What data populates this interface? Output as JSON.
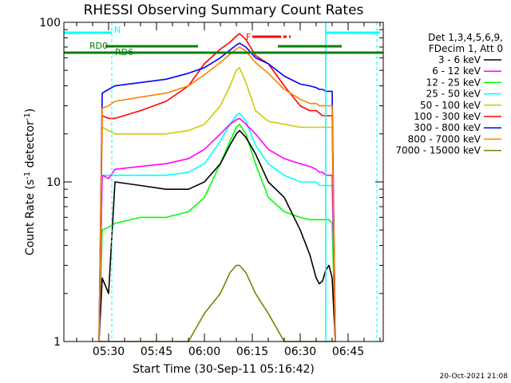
{
  "chart_data": {
    "type": "line",
    "title": "RHESSI Observing Summary Count Rates",
    "xlabel": "Start Time (30-Sep-11 05:16:42)",
    "ylabel": "Count Rate (s",
    "ylabel_sup": "-1",
    "ylabel_tail": " detector",
    "ylabel_tail_sup": "-1",
    "ylabel_end": ")",
    "y_scale": "log",
    "ylim": [
      1,
      100
    ],
    "xlim": [
      "05:16",
      "06:56"
    ],
    "x_ticks": [
      "05:30",
      "05:45",
      "06:00",
      "06:15",
      "06:30",
      "06:45"
    ],
    "y_ticks": [
      "1",
      "10",
      "100"
    ],
    "grid": false,
    "legend_position": "right",
    "legend_header": [
      "Det 1,3,4,5,6,9,",
      "FDecim 1, Att 0"
    ],
    "legend": [
      {
        "label": "3 - 6 keV",
        "color": "#000000"
      },
      {
        "label": "6 - 12 keV",
        "color": "#ff00ff"
      },
      {
        "label": "12 - 25 keV",
        "color": "#00ff00"
      },
      {
        "label": "25 - 50 keV",
        "color": "#00ffff"
      },
      {
        "label": "50 - 100 keV",
        "color": "#cccc00"
      },
      {
        "label": "100 - 300 keV",
        "color": "#ff0000"
      },
      {
        "label": "300 - 800 keV",
        "color": "#0000ff"
      },
      {
        "label": "800 - 7000 keV",
        "color": "#ff8000"
      },
      {
        "label": "7000 - 15000 keV",
        "color": "#808000"
      }
    ],
    "series": [
      {
        "color": "#000000",
        "x": [
          "05:27",
          "05:28",
          "05:30",
          "05:32",
          "05:40",
          "05:48",
          "05:55",
          "06:00",
          "06:05",
          "06:08",
          "06:10",
          "06:11",
          "06:13",
          "06:16",
          "06:20",
          "06:25",
          "06:30",
          "06:33",
          "06:35",
          "06:36",
          "06:37",
          "06:38",
          "06:39",
          "06:40",
          "06:41"
        ],
        "values": [
          1,
          2.5,
          2,
          10,
          9.5,
          9,
          9,
          10,
          13,
          17,
          20,
          21,
          19,
          15,
          10,
          8,
          5,
          3.5,
          2.5,
          2.3,
          2.4,
          2.8,
          3,
          2.5,
          1
        ]
      },
      {
        "color": "#ff00ff",
        "x": [
          "05:27",
          "05:28",
          "05:30",
          "05:32",
          "05:40",
          "05:48",
          "05:55",
          "06:00",
          "06:05",
          "06:08",
          "06:10",
          "06:11",
          "06:13",
          "06:16",
          "06:20",
          "06:25",
          "06:30",
          "06:33",
          "06:35",
          "06:36",
          "06:37",
          "06:38",
          "06:39",
          "06:40",
          "06:41"
        ],
        "values": [
          1,
          11,
          10.5,
          12,
          12.5,
          13,
          14,
          16,
          20,
          23,
          24.5,
          25,
          23,
          20,
          16,
          14,
          13,
          12.5,
          12,
          11.5,
          11.5,
          11,
          11,
          11,
          1
        ]
      },
      {
        "color": "#00ff00",
        "x": [
          "05:27",
          "05:28",
          "05:30",
          "05:32",
          "05:40",
          "05:48",
          "05:55",
          "06:00",
          "06:05",
          "06:08",
          "06:10",
          "06:11",
          "06:13",
          "06:16",
          "06:20",
          "06:25",
          "06:30",
          "06:33",
          "06:35",
          "06:36",
          "06:37",
          "06:38",
          "06:39",
          "06:40",
          "06:41"
        ],
        "values": [
          1,
          5,
          5.2,
          5.5,
          6,
          6,
          6.5,
          8,
          13,
          18,
          22,
          23,
          20,
          13,
          8,
          6.5,
          6,
          5.8,
          5.8,
          5.8,
          5.8,
          5.8,
          5.8,
          5.5,
          1
        ]
      },
      {
        "color": "#00ffff",
        "x": [
          "05:27",
          "05:28",
          "05:30",
          "05:32",
          "05:40",
          "05:48",
          "05:55",
          "06:00",
          "06:05",
          "06:08",
          "06:10",
          "06:11",
          "06:13",
          "06:16",
          "06:20",
          "06:25",
          "06:30",
          "06:33",
          "06:35",
          "06:36",
          "06:37",
          "06:38",
          "06:39",
          "06:40",
          "06:41"
        ],
        "values": [
          1,
          11,
          11,
          11,
          11,
          11,
          11.5,
          13,
          18,
          23,
          26,
          27,
          24,
          17,
          13,
          11,
          10,
          10,
          10,
          9.5,
          9.5,
          9.5,
          9.5,
          9.5,
          1
        ]
      },
      {
        "color": "#cccc00",
        "x": [
          "05:27",
          "05:28",
          "05:30",
          "05:32",
          "05:40",
          "05:48",
          "05:55",
          "06:00",
          "06:05",
          "06:08",
          "06:10",
          "06:11",
          "06:13",
          "06:16",
          "06:20",
          "06:25",
          "06:30",
          "06:33",
          "06:35",
          "06:36",
          "06:37",
          "06:38",
          "06:39",
          "06:40",
          "06:41"
        ],
        "values": [
          1,
          22,
          21,
          20,
          20,
          20,
          21,
          23,
          30,
          40,
          50,
          52,
          42,
          28,
          24,
          23,
          22,
          22,
          22,
          22,
          22,
          22,
          22,
          22,
          1
        ]
      },
      {
        "color": "#ff0000",
        "x": [
          "05:27",
          "05:28",
          "05:30",
          "05:32",
          "05:40",
          "05:48",
          "05:55",
          "06:00",
          "06:05",
          "06:08",
          "06:10",
          "06:11",
          "06:13",
          "06:16",
          "06:20",
          "06:25",
          "06:30",
          "06:33",
          "06:35",
          "06:36",
          "06:37",
          "06:38",
          "06:39",
          "06:40",
          "06:41"
        ],
        "values": [
          1,
          26,
          25,
          25,
          28,
          32,
          40,
          55,
          68,
          75,
          82,
          85,
          78,
          62,
          55,
          40,
          30,
          28,
          28,
          27,
          26,
          26,
          26,
          26,
          1
        ]
      },
      {
        "color": "#0000ff",
        "x": [
          "05:27",
          "05:28",
          "05:30",
          "05:32",
          "05:40",
          "05:48",
          "05:55",
          "06:00",
          "06:05",
          "06:08",
          "06:10",
          "06:11",
          "06:13",
          "06:16",
          "06:20",
          "06:25",
          "06:30",
          "06:33",
          "06:35",
          "06:36",
          "06:37",
          "06:38",
          "06:39",
          "06:40",
          "06:41"
        ],
        "values": [
          1,
          36,
          38,
          40,
          42,
          44,
          48,
          52,
          60,
          67,
          72,
          74,
          70,
          60,
          55,
          46,
          41,
          40,
          39,
          38,
          38,
          37,
          37,
          37,
          1
        ]
      },
      {
        "color": "#ff8000",
        "x": [
          "05:27",
          "05:28",
          "05:30",
          "05:32",
          "05:40",
          "05:48",
          "05:55",
          "06:00",
          "06:05",
          "06:08",
          "06:10",
          "06:11",
          "06:13",
          "06:16",
          "06:20",
          "06:25",
          "06:30",
          "06:33",
          "06:35",
          "06:36",
          "06:37",
          "06:38",
          "06:39",
          "06:40",
          "06:41"
        ],
        "values": [
          1,
          29,
          30,
          32,
          34,
          36,
          40,
          47,
          56,
          63,
          68,
          70,
          66,
          56,
          48,
          38,
          33,
          31,
          31,
          30,
          30,
          30,
          30,
          30,
          1
        ]
      },
      {
        "color": "#808000",
        "x": [
          "05:27",
          "05:28",
          "05:30",
          "05:32",
          "05:40",
          "05:48",
          "05:55",
          "06:00",
          "06:05",
          "06:08",
          "06:10",
          "06:11",
          "06:13",
          "06:16",
          "06:20",
          "06:25",
          "06:30",
          "06:33",
          "06:35",
          "06:36",
          "06:37",
          "06:38",
          "06:39",
          "06:40",
          "06:41"
        ],
        "values": [
          1,
          1,
          1,
          1,
          1,
          1,
          1,
          1.5,
          2,
          2.7,
          3,
          3,
          2.7,
          2,
          1.5,
          1,
          1,
          1,
          1,
          1,
          1,
          1,
          1,
          1,
          1
        ]
      }
    ],
    "annotations": [
      {
        "text": "N",
        "color": "#00ffff"
      },
      {
        "text": "RD0",
        "color": "#008000"
      },
      {
        "text": "RD6",
        "color": "#008000"
      },
      {
        "text": "F",
        "color": "#ff0000"
      }
    ]
  },
  "footer_timestamp": "20-Oct-2021 21:08"
}
